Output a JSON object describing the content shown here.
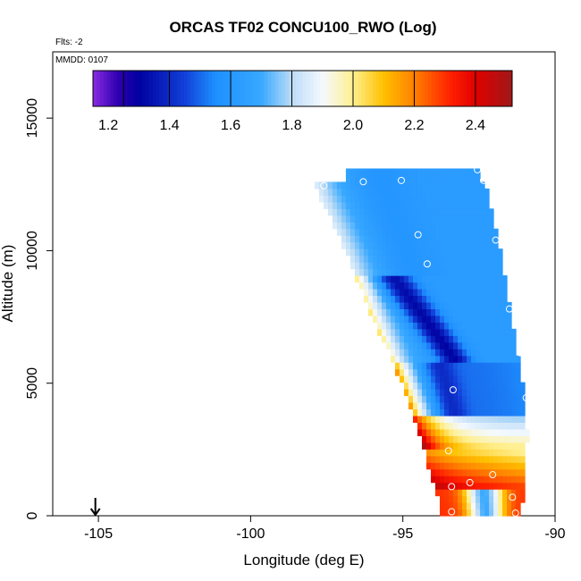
{
  "chart_data": {
    "type": "heatmap",
    "title": "ORCAS TF02 CONCU100_RWO (Log)",
    "flight_note": "Flts: -2",
    "date_note": "MMDD: 0107",
    "xlabel": "Longitude (deg E)",
    "ylabel": "Altitude (m)",
    "xlim": [
      -106.5,
      -90
    ],
    "ylim": [
      0,
      17500
    ],
    "x_ticks": [
      {
        "value": -105,
        "label": "-105"
      },
      {
        "value": -100,
        "label": "-100"
      },
      {
        "value": -95,
        "label": "-95"
      },
      {
        "value": -90,
        "label": "-90"
      }
    ],
    "y_ticks": [
      {
        "value": 0,
        "label": "0"
      },
      {
        "value": 5000,
        "label": "5000"
      },
      {
        "value": 10000,
        "label": "10000"
      },
      {
        "value": 15000,
        "label": "15000"
      }
    ],
    "colorbar": {
      "range": [
        1.15,
        2.52
      ],
      "ticks": [
        {
          "value": 1.2,
          "label": "1.2"
        },
        {
          "value": 1.4,
          "label": "1.4"
        },
        {
          "value": 1.6,
          "label": "1.6"
        },
        {
          "value": 1.8,
          "label": "1.8"
        },
        {
          "value": 2.0,
          "label": "2.0"
        },
        {
          "value": 2.2,
          "label": "2.2"
        },
        {
          "value": 2.4,
          "label": "2.4"
        }
      ],
      "stops": [
        {
          "v": 1.15,
          "c": "#8a2be2"
        },
        {
          "v": 1.23,
          "c": "#3000b0"
        },
        {
          "v": 1.3,
          "c": "#0000a0"
        },
        {
          "v": 1.45,
          "c": "#1240d8"
        },
        {
          "v": 1.55,
          "c": "#1e90ff"
        },
        {
          "v": 1.7,
          "c": "#38a8ff"
        },
        {
          "v": 1.8,
          "c": "#bcdcf6"
        },
        {
          "v": 1.9,
          "c": "#f4f9ff"
        },
        {
          "v": 2.0,
          "c": "#fff090"
        },
        {
          "v": 2.1,
          "c": "#ffc000"
        },
        {
          "v": 2.2,
          "c": "#ff8000"
        },
        {
          "v": 2.32,
          "c": "#ff2000"
        },
        {
          "v": 2.4,
          "c": "#e00000"
        },
        {
          "v": 2.52,
          "c": "#a01818"
        }
      ]
    },
    "field": {
      "x_min": -97.9,
      "x_max": -90.85,
      "y_min": 0,
      "y_max": 13100,
      "nx": 48,
      "ny": 52,
      "description_points": {
        "boundary_left": [
          [
            12500,
            -97.9
          ],
          [
            11500,
            -97.5
          ],
          [
            10000,
            -96.9
          ],
          [
            8000,
            -96.2
          ],
          [
            6000,
            -95.4
          ],
          [
            4000,
            -94.7
          ],
          [
            2000,
            -94.2
          ],
          [
            0,
            -93.7
          ]
        ],
        "boundary_right": [
          [
            13100,
            -92.6
          ],
          [
            12500,
            -92.3
          ],
          [
            10000,
            -91.8
          ],
          [
            8000,
            -91.5
          ],
          [
            6000,
            -91.2
          ],
          [
            4500,
            -91.0
          ],
          [
            3000,
            -90.9
          ],
          [
            1500,
            -91.0
          ],
          [
            0,
            -91.1
          ]
        ]
      }
    },
    "arrow_marker": {
      "x": -105.1,
      "y": 0
    },
    "circle_markers": [
      {
        "x": -97.6,
        "y": 12450
      },
      {
        "x": -96.3,
        "y": 12600
      },
      {
        "x": -95.05,
        "y": 12650
      },
      {
        "x": -92.55,
        "y": 13050
      },
      {
        "x": -92.35,
        "y": 12650
      },
      {
        "x": -94.5,
        "y": 10600
      },
      {
        "x": -94.2,
        "y": 9500
      },
      {
        "x": -91.95,
        "y": 10400
      },
      {
        "x": -91.5,
        "y": 7800
      },
      {
        "x": -91.15,
        "y": 6150
      },
      {
        "x": -93.35,
        "y": 4750
      },
      {
        "x": -90.95,
        "y": 4450
      },
      {
        "x": -93.5,
        "y": 2450
      },
      {
        "x": -92.8,
        "y": 1250
      },
      {
        "x": -93.4,
        "y": 1100
      },
      {
        "x": -92.05,
        "y": 1550
      },
      {
        "x": -91.4,
        "y": 700
      },
      {
        "x": -91.3,
        "y": 100
      },
      {
        "x": -93.4,
        "y": 150
      }
    ]
  }
}
